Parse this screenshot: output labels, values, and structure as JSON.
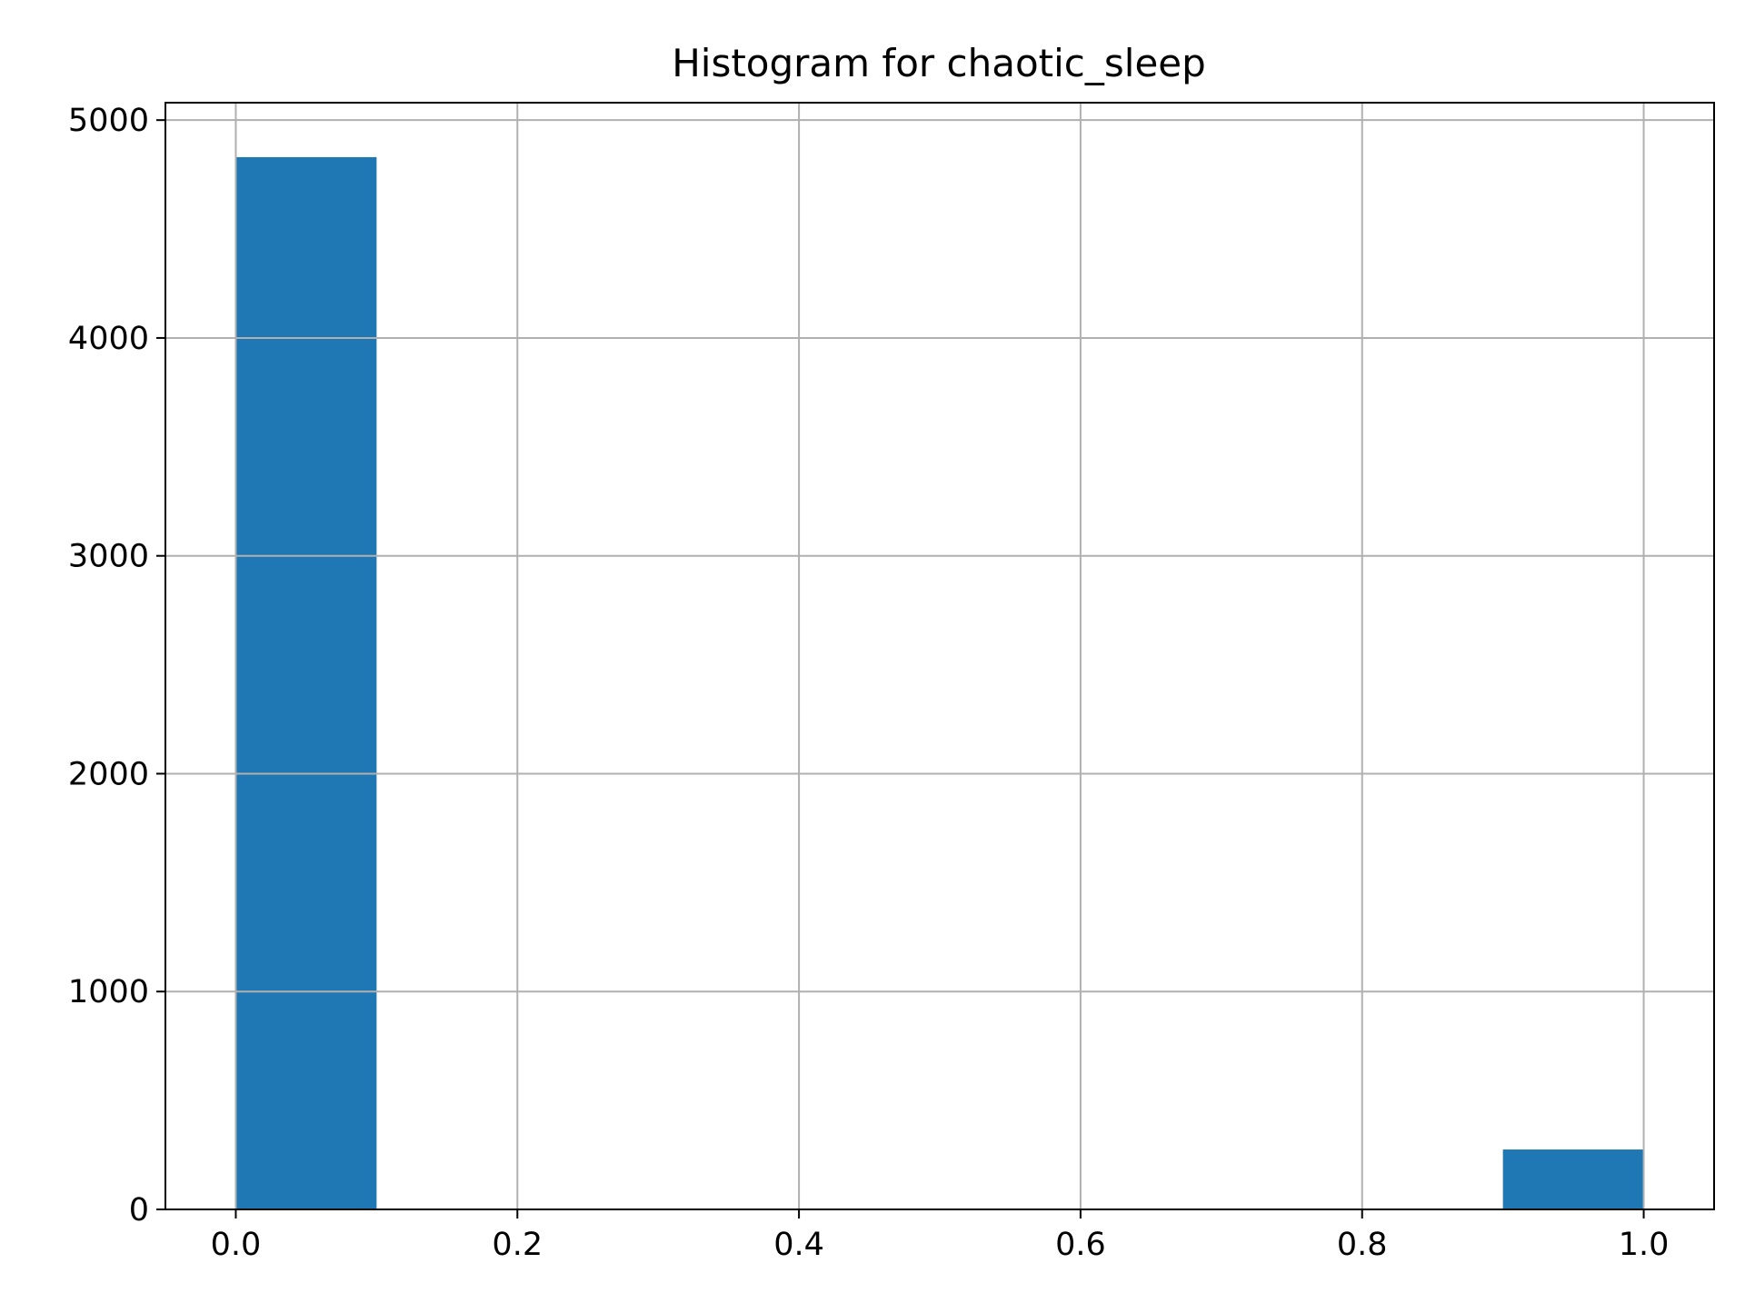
{
  "chart_data": {
    "type": "bar",
    "title": "Histogram for chaotic_sleep",
    "xlabel": "",
    "ylabel": "",
    "bins": [
      {
        "x0": 0.0,
        "x1": 0.1,
        "count": 4830
      },
      {
        "x0": 0.1,
        "x1": 0.2,
        "count": 0
      },
      {
        "x0": 0.2,
        "x1": 0.3,
        "count": 0
      },
      {
        "x0": 0.3,
        "x1": 0.4,
        "count": 0
      },
      {
        "x0": 0.4,
        "x1": 0.5,
        "count": 0
      },
      {
        "x0": 0.5,
        "x1": 0.6,
        "count": 0
      },
      {
        "x0": 0.6,
        "x1": 0.7,
        "count": 0
      },
      {
        "x0": 0.7,
        "x1": 0.8,
        "count": 0
      },
      {
        "x0": 0.8,
        "x1": 0.9,
        "count": 0
      },
      {
        "x0": 0.9,
        "x1": 1.0,
        "count": 275
      }
    ],
    "xlim": [
      -0.05,
      1.05
    ],
    "ylim": [
      0,
      5080
    ],
    "xticks": [
      0.0,
      0.2,
      0.4,
      0.6,
      0.8,
      1.0
    ],
    "xtick_labels": [
      "0.0",
      "0.2",
      "0.4",
      "0.6",
      "0.8",
      "1.0"
    ],
    "yticks": [
      0,
      1000,
      2000,
      3000,
      4000,
      5000
    ],
    "ytick_labels": [
      "0",
      "1000",
      "2000",
      "3000",
      "4000",
      "5000"
    ],
    "grid": true,
    "bar_color": "#1f77b4",
    "grid_color": "#b0b0b0"
  }
}
